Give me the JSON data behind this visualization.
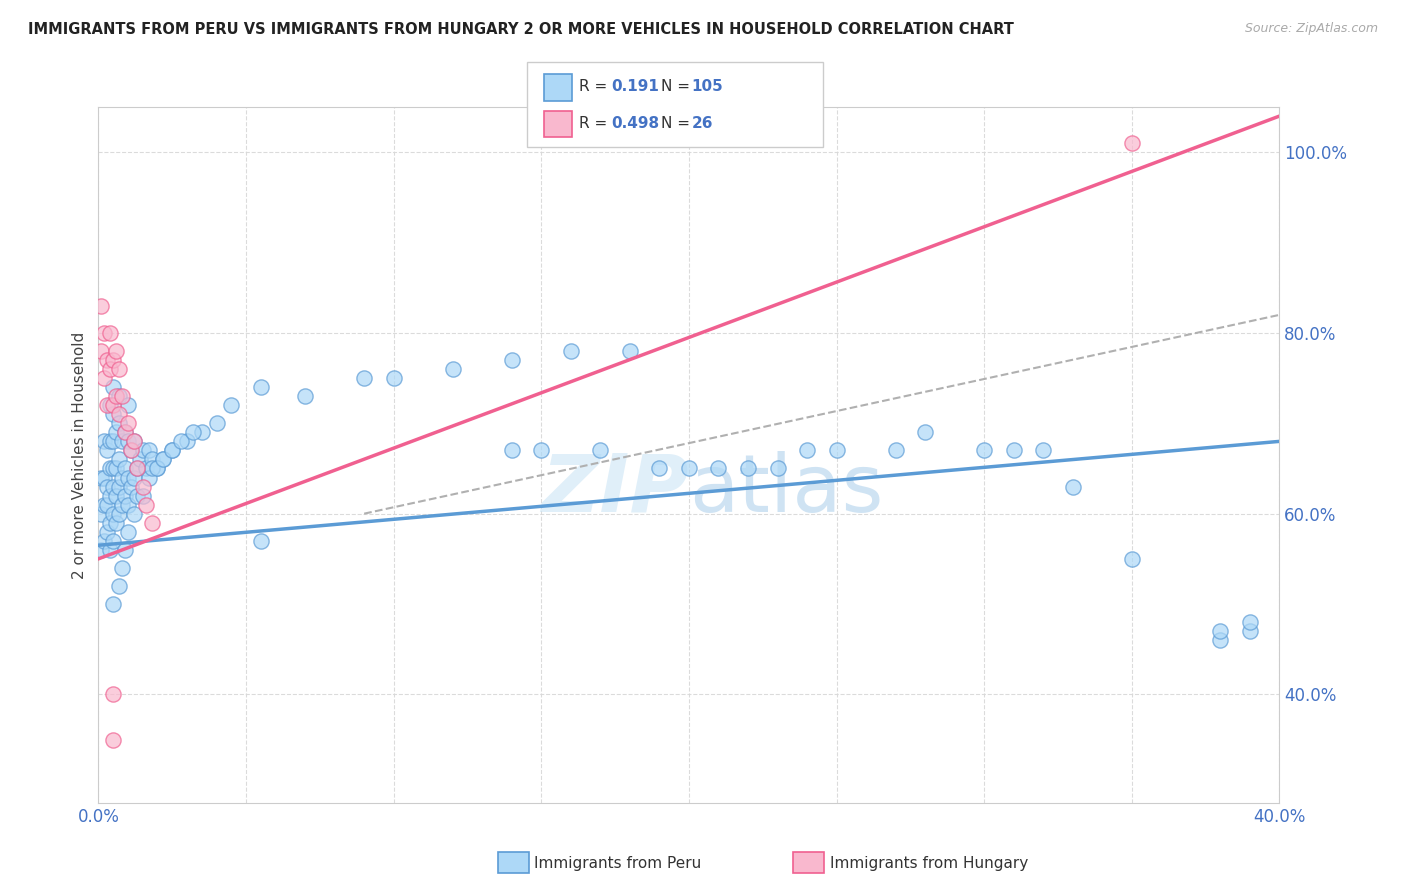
{
  "title": "IMMIGRANTS FROM PERU VS IMMIGRANTS FROM HUNGARY 2 OR MORE VEHICLES IN HOUSEHOLD CORRELATION CHART",
  "source": "Source: ZipAtlas.com",
  "ylabel_label": "2 or more Vehicles in Household",
  "legend_label1": "Immigrants from Peru",
  "legend_label2": "Immigrants from Hungary",
  "r_peru": 0.191,
  "n_peru": 105,
  "r_hungary": 0.498,
  "n_hungary": 26,
  "color_peru": "#add8f7",
  "color_hungary": "#f9b8ce",
  "color_peru_line": "#5b9bd5",
  "color_hungary_line": "#f06090",
  "color_text_blue": "#4472c4",
  "xlim": [
    0.0,
    0.4
  ],
  "ylim": [
    0.28,
    1.05
  ],
  "xtick_positions": [
    0.0,
    0.05,
    0.1,
    0.15,
    0.2,
    0.25,
    0.3,
    0.35,
    0.4
  ],
  "xtick_labels": [
    "0.0%",
    "",
    "",
    "",
    "",
    "",
    "",
    "",
    "40.0%"
  ],
  "ytick_positions": [
    0.4,
    0.6,
    0.8,
    1.0
  ],
  "ytick_labels": [
    "40.0%",
    "60.0%",
    "80.0%",
    "100.0%"
  ],
  "grid_color": "#d8d8d8",
  "peru_x": [
    0.001,
    0.001,
    0.001,
    0.002,
    0.002,
    0.002,
    0.002,
    0.003,
    0.003,
    0.003,
    0.003,
    0.004,
    0.004,
    0.004,
    0.004,
    0.004,
    0.004,
    0.005,
    0.005,
    0.005,
    0.005,
    0.005,
    0.005,
    0.005,
    0.006,
    0.006,
    0.006,
    0.006,
    0.007,
    0.007,
    0.007,
    0.007,
    0.007,
    0.008,
    0.008,
    0.008,
    0.009,
    0.009,
    0.009,
    0.01,
    0.01,
    0.01,
    0.01,
    0.011,
    0.011,
    0.012,
    0.012,
    0.013,
    0.014,
    0.015,
    0.016,
    0.017,
    0.018,
    0.02,
    0.022,
    0.025,
    0.03,
    0.035,
    0.055,
    0.14,
    0.15,
    0.17,
    0.19,
    0.2,
    0.21,
    0.22,
    0.23,
    0.24,
    0.25,
    0.27,
    0.28,
    0.3,
    0.31,
    0.32,
    0.33,
    0.35,
    0.38,
    0.38,
    0.39,
    0.39,
    0.005,
    0.007,
    0.008,
    0.009,
    0.01,
    0.012,
    0.013,
    0.015,
    0.017,
    0.018,
    0.02,
    0.022,
    0.025,
    0.028,
    0.032,
    0.04,
    0.045,
    0.055,
    0.07,
    0.09,
    0.1,
    0.12,
    0.14,
    0.16,
    0.18
  ],
  "peru_y": [
    0.56,
    0.6,
    0.64,
    0.57,
    0.61,
    0.64,
    0.68,
    0.58,
    0.61,
    0.63,
    0.67,
    0.56,
    0.59,
    0.62,
    0.65,
    0.68,
    0.72,
    0.57,
    0.6,
    0.63,
    0.65,
    0.68,
    0.71,
    0.74,
    0.59,
    0.62,
    0.65,
    0.69,
    0.6,
    0.63,
    0.66,
    0.7,
    0.73,
    0.61,
    0.64,
    0.68,
    0.62,
    0.65,
    0.69,
    0.61,
    0.64,
    0.68,
    0.72,
    0.63,
    0.67,
    0.64,
    0.68,
    0.65,
    0.66,
    0.67,
    0.65,
    0.67,
    0.66,
    0.65,
    0.66,
    0.67,
    0.68,
    0.69,
    0.57,
    0.67,
    0.67,
    0.67,
    0.65,
    0.65,
    0.65,
    0.65,
    0.65,
    0.67,
    0.67,
    0.67,
    0.69,
    0.67,
    0.67,
    0.67,
    0.63,
    0.55,
    0.46,
    0.47,
    0.47,
    0.48,
    0.5,
    0.52,
    0.54,
    0.56,
    0.58,
    0.6,
    0.62,
    0.62,
    0.64,
    0.65,
    0.65,
    0.66,
    0.67,
    0.68,
    0.69,
    0.7,
    0.72,
    0.74,
    0.73,
    0.75,
    0.75,
    0.76,
    0.77,
    0.78,
    0.78
  ],
  "hungary_x": [
    0.001,
    0.001,
    0.002,
    0.002,
    0.003,
    0.003,
    0.004,
    0.004,
    0.005,
    0.005,
    0.006,
    0.006,
    0.007,
    0.007,
    0.008,
    0.009,
    0.01,
    0.011,
    0.012,
    0.013,
    0.015,
    0.016,
    0.018,
    0.35,
    0.005,
    0.005
  ],
  "hungary_y": [
    0.78,
    0.83,
    0.75,
    0.8,
    0.72,
    0.77,
    0.76,
    0.8,
    0.72,
    0.77,
    0.73,
    0.78,
    0.71,
    0.76,
    0.73,
    0.69,
    0.7,
    0.67,
    0.68,
    0.65,
    0.63,
    0.61,
    0.59,
    1.01,
    0.35,
    0.4
  ],
  "peru_line_x": [
    0.0,
    0.4
  ],
  "peru_line_y": [
    0.565,
    0.68
  ],
  "hungary_line_x": [
    0.0,
    0.4
  ],
  "hungary_line_y": [
    0.55,
    1.04
  ],
  "diag_line_x": [
    0.09,
    0.4
  ],
  "diag_line_y": [
    0.6,
    0.82
  ]
}
